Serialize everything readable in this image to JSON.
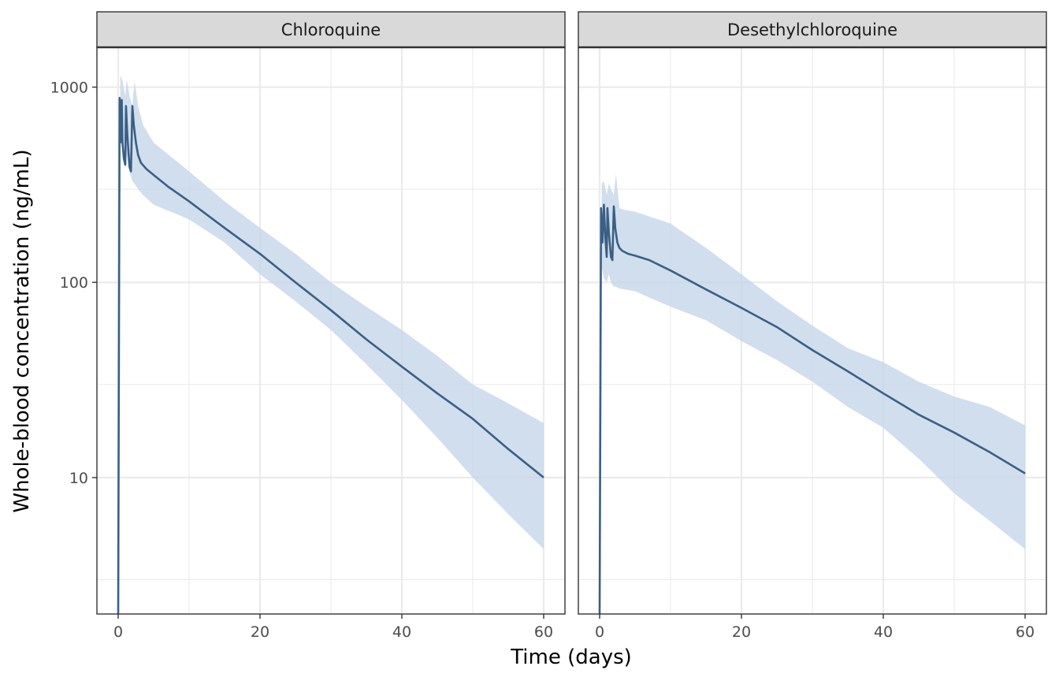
{
  "chart_data": {
    "type": "line",
    "xlabel": "Time (days)",
    "ylabel": "Whole-blood concentration (ng/mL)",
    "y_scale": "log10",
    "xlim": [
      -3,
      63
    ],
    "ylim": [
      2,
      1600
    ],
    "x_ticks": [
      0,
      20,
      40,
      60
    ],
    "x_tick_labels": [
      "0",
      "20",
      "40",
      "60"
    ],
    "y_ticks": [
      10,
      100,
      1000
    ],
    "y_tick_labels": [
      "10",
      "100",
      "1000"
    ],
    "grid": true,
    "line_color": "#3a5f85",
    "band_color": "#c6d6e8",
    "panels": [
      {
        "label": "Chloroquine",
        "series": [
          {
            "median": {
              "x": [
                0,
                0,
                0.2,
                0.3,
                0.5,
                0.6,
                0.8,
                1.0,
                1.1,
                1.3,
                1.6,
                1.8,
                2.0,
                2.2,
                2.5,
                2.8,
                3.2,
                4,
                5,
                7,
                10,
                15,
                20,
                25,
                30,
                35,
                40,
                45,
                50,
                55,
                60
              ],
              "y": [
                1,
                2,
                880,
                520,
                860,
                520,
                430,
                400,
                800,
                560,
                390,
                370,
                800,
                640,
                520,
                450,
                410,
                380,
                355,
                310,
                260,
                190,
                140,
                100,
                72,
                51,
                37,
                27,
                20,
                14,
                10
              ]
            },
            "band": {
              "x": [
                0,
                0.3,
                0.6,
                1.0,
                1.2,
                1.6,
                2.0,
                2.3,
                2.8,
                3.5,
                5,
                10,
                15,
                20,
                25,
                30,
                35,
                40,
                45,
                50,
                55,
                60
              ],
              "lower": [
                2,
                700,
                500,
                380,
                450,
                370,
                330,
                320,
                300,
                280,
                250,
                210,
                160,
                110,
                80,
                57,
                38,
                25,
                16,
                10,
                6.5,
                4.3
              ],
              "upper": [
                2,
                1150,
                1080,
                900,
                1100,
                900,
                800,
                1080,
                800,
                640,
                520,
                370,
                260,
                190,
                140,
                100,
                75,
                57,
                42,
                30,
                24,
                19
              ]
            }
          }
        ]
      },
      {
        "label": "Desethylchloroquine",
        "series": [
          {
            "median": {
              "x": [
                0,
                0,
                0.2,
                0.4,
                0.6,
                0.8,
                1.0,
                1.1,
                1.3,
                1.6,
                1.8,
                2.0,
                2.2,
                2.5,
                2.8,
                3.2,
                4,
                5,
                7,
                10,
                15,
                20,
                25,
                30,
                35,
                40,
                45,
                50,
                55,
                60
              ],
              "y": [
                1,
                2,
                240,
                160,
                250,
                170,
                135,
                240,
                180,
                135,
                130,
                245,
                190,
                160,
                150,
                145,
                140,
                137,
                130,
                115,
                92,
                74,
                59,
                45,
                35,
                27,
                21,
                17,
                13.5,
                10.5
              ]
            },
            "band": {
              "x": [
                0,
                0.3,
                0.6,
                1.0,
                1.3,
                1.6,
                2.0,
                2.3,
                2.8,
                3.5,
                5,
                10,
                15,
                20,
                25,
                30,
                35,
                40,
                45,
                50,
                55,
                60
              ],
              "lower": [
                2,
                120,
                105,
                100,
                110,
                100,
                95,
                95,
                93,
                92,
                90,
                75,
                64,
                50,
                40,
                31,
                23,
                18,
                12.5,
                8.3,
                6,
                4.3
              ],
              "upper": [
                2,
                320,
                330,
                280,
                320,
                300,
                280,
                360,
                240,
                235,
                230,
                200,
                150,
                110,
                80,
                60,
                46,
                39,
                31,
                26,
                23,
                18.5
              ]
            }
          }
        ]
      }
    ]
  }
}
